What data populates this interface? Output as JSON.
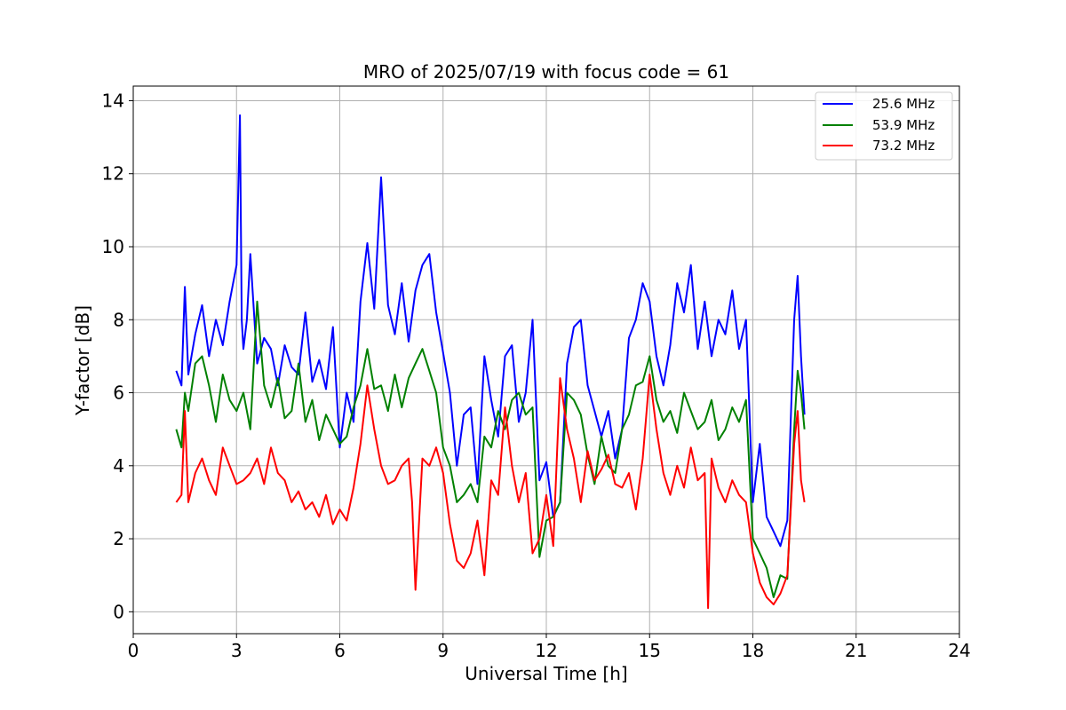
{
  "chart_data": {
    "type": "line",
    "title": "MRO of 2025/07/19 with focus code = 61",
    "xlabel": "Universal Time [h]",
    "ylabel": "Y-factor [dB]",
    "xlim": [
      0,
      24
    ],
    "ylim": [
      -0.6,
      14.4
    ],
    "xticks": [
      0,
      3,
      6,
      9,
      12,
      15,
      18,
      21,
      24
    ],
    "yticks": [
      0,
      2,
      4,
      6,
      8,
      10,
      12,
      14
    ],
    "grid": true,
    "legend_position": "top-right",
    "series": [
      {
        "name": "25.6 MHz",
        "color": "#0000ff",
        "x": [
          1.25,
          1.4,
          1.5,
          1.6,
          1.8,
          2.0,
          2.2,
          2.4,
          2.6,
          2.8,
          3.0,
          3.1,
          3.15,
          3.2,
          3.3,
          3.4,
          3.6,
          3.8,
          4.0,
          4.2,
          4.4,
          4.6,
          4.8,
          5.0,
          5.2,
          5.4,
          5.6,
          5.8,
          6.0,
          6.2,
          6.4,
          6.6,
          6.8,
          7.0,
          7.2,
          7.4,
          7.6,
          7.8,
          8.0,
          8.2,
          8.4,
          8.6,
          8.8,
          9.0,
          9.2,
          9.4,
          9.6,
          9.8,
          10.0,
          10.2,
          10.4,
          10.6,
          10.8,
          11.0,
          11.2,
          11.4,
          11.6,
          11.8,
          12.0,
          12.2,
          12.4,
          12.6,
          12.8,
          13.0,
          13.2,
          13.4,
          13.6,
          13.8,
          14.0,
          14.2,
          14.4,
          14.6,
          14.8,
          15.0,
          15.2,
          15.4,
          15.6,
          15.8,
          16.0,
          16.2,
          16.4,
          16.6,
          16.8,
          17.0,
          17.2,
          17.4,
          17.6,
          17.8,
          18.0,
          18.2,
          18.4,
          18.6,
          18.8,
          19.0,
          19.2,
          19.3,
          19.4,
          19.5
        ],
        "values": [
          6.6,
          6.2,
          8.9,
          6.5,
          7.6,
          8.4,
          7.0,
          8.0,
          7.3,
          8.5,
          9.5,
          13.6,
          8.0,
          7.2,
          8.0,
          9.8,
          6.8,
          7.5,
          7.2,
          6.2,
          7.3,
          6.7,
          6.5,
          8.2,
          6.3,
          6.9,
          6.1,
          7.8,
          4.5,
          6.0,
          5.2,
          8.5,
          10.1,
          8.3,
          11.9,
          8.4,
          7.6,
          9.0,
          7.4,
          8.8,
          9.5,
          9.8,
          8.2,
          7.1,
          6.0,
          4.0,
          5.4,
          5.6,
          3.5,
          7.0,
          5.8,
          4.8,
          7.0,
          7.3,
          5.2,
          6.0,
          8.0,
          3.6,
          4.1,
          2.6,
          3.0,
          6.8,
          7.8,
          8.0,
          6.2,
          5.5,
          4.8,
          5.5,
          4.2,
          5.0,
          7.5,
          8.0,
          9.0,
          8.5,
          7.0,
          6.2,
          7.3,
          9.0,
          8.2,
          9.5,
          7.2,
          8.5,
          7.0,
          8.0,
          7.6,
          8.8,
          7.2,
          8.0,
          3.0,
          4.6,
          2.6,
          2.2,
          1.8,
          2.5,
          8.0,
          9.2,
          7.0,
          5.4
        ],
        "line_width": 2
      },
      {
        "name": "53.9 MHz",
        "color": "#008000",
        "x": [
          1.25,
          1.4,
          1.5,
          1.6,
          1.8,
          2.0,
          2.2,
          2.4,
          2.6,
          2.8,
          3.0,
          3.2,
          3.4,
          3.6,
          3.8,
          4.0,
          4.2,
          4.4,
          4.6,
          4.8,
          5.0,
          5.2,
          5.4,
          5.6,
          5.8,
          6.0,
          6.2,
          6.4,
          6.6,
          6.8,
          7.0,
          7.2,
          7.4,
          7.6,
          7.8,
          8.0,
          8.2,
          8.4,
          8.6,
          8.8,
          9.0,
          9.2,
          9.4,
          9.6,
          9.8,
          10.0,
          10.2,
          10.4,
          10.6,
          10.8,
          11.0,
          11.2,
          11.4,
          11.6,
          11.8,
          12.0,
          12.2,
          12.4,
          12.6,
          12.8,
          13.0,
          13.2,
          13.4,
          13.6,
          13.8,
          14.0,
          14.2,
          14.4,
          14.6,
          14.8,
          15.0,
          15.2,
          15.4,
          15.6,
          15.8,
          16.0,
          16.2,
          16.4,
          16.6,
          16.8,
          17.0,
          17.2,
          17.4,
          17.6,
          17.8,
          18.0,
          18.2,
          18.4,
          18.6,
          18.8,
          19.0,
          19.2,
          19.3,
          19.4,
          19.5
        ],
        "values": [
          5.0,
          4.5,
          6.0,
          5.5,
          6.8,
          7.0,
          6.2,
          5.2,
          6.5,
          5.8,
          5.5,
          6.0,
          5.0,
          8.5,
          6.2,
          5.6,
          6.4,
          5.3,
          5.5,
          6.8,
          5.2,
          5.8,
          4.7,
          5.4,
          5.0,
          4.6,
          4.8,
          5.6,
          6.2,
          7.2,
          6.1,
          6.2,
          5.5,
          6.5,
          5.6,
          6.4,
          6.8,
          7.2,
          6.6,
          6.0,
          4.5,
          4.0,
          3.0,
          3.2,
          3.5,
          3.0,
          4.8,
          4.5,
          5.5,
          5.0,
          5.8,
          6.0,
          5.4,
          5.6,
          1.5,
          2.5,
          2.6,
          3.0,
          6.0,
          5.8,
          5.4,
          4.3,
          3.5,
          4.8,
          4.0,
          3.8,
          5.0,
          5.4,
          6.2,
          6.3,
          7.0,
          5.8,
          5.2,
          5.5,
          4.9,
          6.0,
          5.5,
          5.0,
          5.2,
          5.8,
          4.7,
          5.0,
          5.6,
          5.2,
          5.8,
          2.0,
          1.6,
          1.2,
          0.4,
          1.0,
          0.9,
          5.0,
          6.6,
          6.0,
          5.0
        ],
        "line_width": 2
      },
      {
        "name": "73.2 MHz",
        "color": "#ff0000",
        "x": [
          1.25,
          1.4,
          1.5,
          1.6,
          1.8,
          2.0,
          2.2,
          2.4,
          2.6,
          2.8,
          3.0,
          3.2,
          3.4,
          3.6,
          3.8,
          4.0,
          4.2,
          4.4,
          4.6,
          4.8,
          5.0,
          5.2,
          5.4,
          5.6,
          5.8,
          6.0,
          6.2,
          6.4,
          6.6,
          6.8,
          7.0,
          7.2,
          7.4,
          7.6,
          7.8,
          8.0,
          8.1,
          8.2,
          8.4,
          8.6,
          8.8,
          9.0,
          9.2,
          9.4,
          9.6,
          9.8,
          10.0,
          10.2,
          10.4,
          10.6,
          10.8,
          11.0,
          11.2,
          11.4,
          11.6,
          11.8,
          12.0,
          12.2,
          12.4,
          12.6,
          12.8,
          13.0,
          13.2,
          13.4,
          13.6,
          13.8,
          14.0,
          14.2,
          14.4,
          14.6,
          14.8,
          15.0,
          15.2,
          15.4,
          15.6,
          15.8,
          16.0,
          16.2,
          16.4,
          16.6,
          16.7,
          16.8,
          17.0,
          17.2,
          17.4,
          17.6,
          17.8,
          18.0,
          18.2,
          18.4,
          18.6,
          18.8,
          19.0,
          19.2,
          19.3,
          19.4,
          19.5
        ],
        "values": [
          3.0,
          3.2,
          5.5,
          3.0,
          3.8,
          4.2,
          3.6,
          3.2,
          4.5,
          4.0,
          3.5,
          3.6,
          3.8,
          4.2,
          3.5,
          4.5,
          3.8,
          3.6,
          3.0,
          3.3,
          2.8,
          3.0,
          2.6,
          3.2,
          2.4,
          2.8,
          2.5,
          3.4,
          4.6,
          6.2,
          5.0,
          4.0,
          3.5,
          3.6,
          4.0,
          4.2,
          3.0,
          0.6,
          4.2,
          4.0,
          4.5,
          3.8,
          2.4,
          1.4,
          1.2,
          1.6,
          2.5,
          1.0,
          3.6,
          3.2,
          5.6,
          4.0,
          3.0,
          3.8,
          1.6,
          2.0,
          3.2,
          1.8,
          6.4,
          5.0,
          4.2,
          3.0,
          4.4,
          3.6,
          3.9,
          4.3,
          3.5,
          3.4,
          3.8,
          2.8,
          4.2,
          6.5,
          5.0,
          3.8,
          3.2,
          4.0,
          3.4,
          4.5,
          3.6,
          3.8,
          0.1,
          4.2,
          3.4,
          3.0,
          3.6,
          3.2,
          3.0,
          1.6,
          0.8,
          0.4,
          0.2,
          0.5,
          1.0,
          4.6,
          5.5,
          3.6,
          3.0
        ],
        "line_width": 2
      }
    ]
  }
}
